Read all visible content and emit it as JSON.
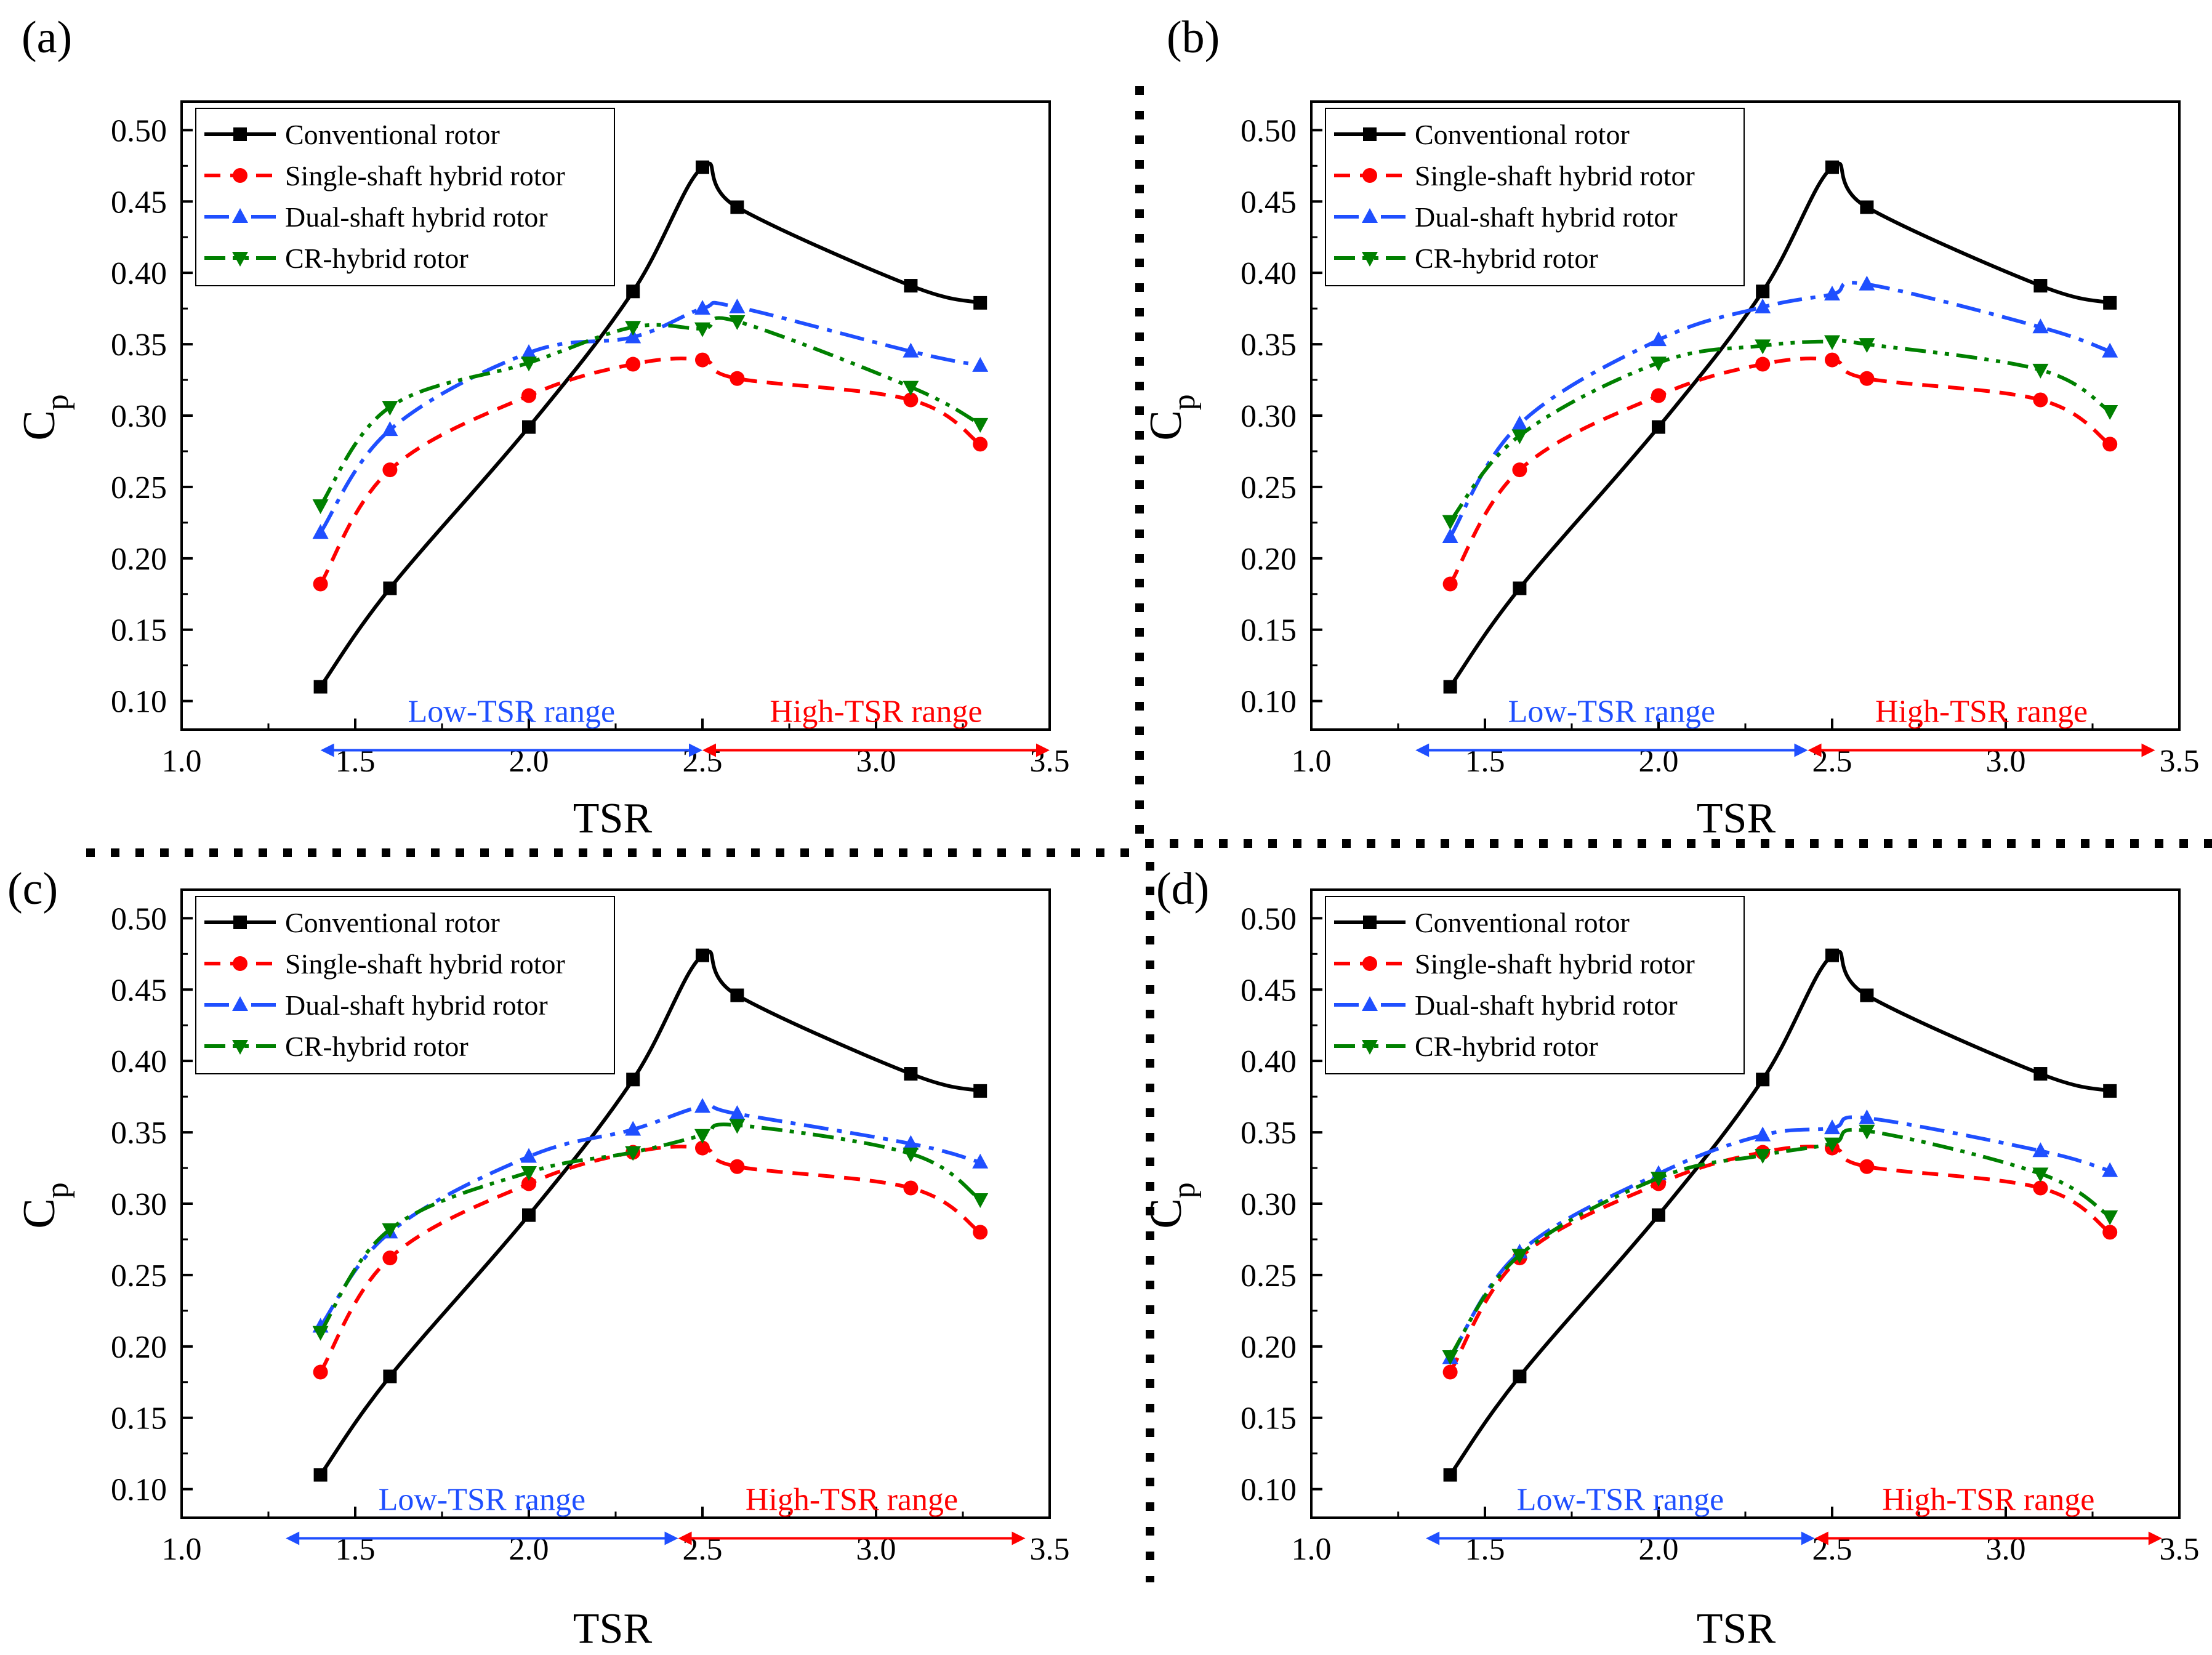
{
  "chart_data": [
    {
      "type": "line",
      "panel_label": "(a)",
      "xlabel": "TSR",
      "ylabel_main": "C",
      "ylabel_sub": "p",
      "xlim": [
        1.0,
        3.5
      ],
      "ylim": [
        0.08,
        0.52
      ],
      "xticks": [
        "1.0",
        "1.5",
        "2.0",
        "2.5",
        "3.0",
        "3.5"
      ],
      "yticks": [
        "0.10",
        "0.15",
        "0.20",
        "0.25",
        "0.30",
        "0.35",
        "0.40",
        "0.45",
        "0.50"
      ],
      "legend_position": "top-left",
      "series": [
        {
          "name": "Conventional rotor",
          "color": "#000000",
          "marker": "square",
          "dash": "solid",
          "x": [
            1.4,
            1.6,
            2.0,
            2.3,
            2.5,
            2.6,
            3.1,
            3.3
          ],
          "values": [
            0.11,
            0.179,
            0.292,
            0.387,
            0.474,
            0.446,
            0.391,
            0.379
          ]
        },
        {
          "name": "Single-shaft hybrid rotor",
          "color": "#ff0000",
          "marker": "circle",
          "dash": "dash",
          "x": [
            1.4,
            1.6,
            2.0,
            2.3,
            2.5,
            2.6,
            3.1,
            3.3
          ],
          "values": [
            0.182,
            0.262,
            0.314,
            0.336,
            0.339,
            0.326,
            0.311,
            0.28
          ]
        },
        {
          "name": "Dual-shaft hybrid rotor",
          "color": "#1f4fff",
          "marker": "triangle-up",
          "dash": "dashdot",
          "x": [
            1.4,
            1.6,
            2.0,
            2.3,
            2.5,
            2.6,
            3.1,
            3.3
          ],
          "values": [
            0.218,
            0.29,
            0.344,
            0.355,
            0.375,
            0.376,
            0.345,
            0.335
          ]
        },
        {
          "name": "CR-hybrid rotor",
          "color": "#008000",
          "marker": "triangle-down",
          "dash": "dashdotdot",
          "x": [
            1.4,
            1.6,
            2.0,
            2.3,
            2.5,
            2.6,
            3.1,
            3.3
          ],
          "values": [
            0.237,
            0.306,
            0.337,
            0.362,
            0.361,
            0.366,
            0.32,
            0.294
          ]
        }
      ],
      "annotations": [
        {
          "text": "Low-TSR range",
          "color": "#1f4fff",
          "x_start": 1.4,
          "x_end": 2.5
        },
        {
          "text": "High-TSR range",
          "color": "#ff0000",
          "x_start": 2.5,
          "x_end": 3.5
        }
      ]
    },
    {
      "type": "line",
      "panel_label": "(b)",
      "xlabel": "TSR",
      "ylabel_main": "C",
      "ylabel_sub": "p",
      "xlim": [
        1.0,
        3.5
      ],
      "ylim": [
        0.08,
        0.52
      ],
      "xticks": [
        "1.0",
        "1.5",
        "2.0",
        "2.5",
        "3.0",
        "3.5"
      ],
      "yticks": [
        "0.10",
        "0.15",
        "0.20",
        "0.25",
        "0.30",
        "0.35",
        "0.40",
        "0.45",
        "0.50"
      ],
      "legend_position": "top-left",
      "series": [
        {
          "name": "Conventional rotor",
          "color": "#000000",
          "marker": "square",
          "dash": "solid",
          "x": [
            1.4,
            1.6,
            2.0,
            2.3,
            2.5,
            2.6,
            3.1,
            3.3
          ],
          "values": [
            0.11,
            0.179,
            0.292,
            0.387,
            0.474,
            0.446,
            0.391,
            0.379
          ]
        },
        {
          "name": "Single-shaft hybrid rotor",
          "color": "#ff0000",
          "marker": "circle",
          "dash": "dash",
          "x": [
            1.4,
            1.6,
            2.0,
            2.3,
            2.5,
            2.6,
            3.1,
            3.3
          ],
          "values": [
            0.182,
            0.262,
            0.314,
            0.336,
            0.339,
            0.326,
            0.311,
            0.28
          ]
        },
        {
          "name": "Dual-shaft hybrid rotor",
          "color": "#1f4fff",
          "marker": "triangle-up",
          "dash": "dashdot",
          "x": [
            1.4,
            1.6,
            2.0,
            2.3,
            2.5,
            2.6,
            3.1,
            3.3
          ],
          "values": [
            0.215,
            0.294,
            0.353,
            0.376,
            0.385,
            0.392,
            0.362,
            0.345
          ]
        },
        {
          "name": "CR-hybrid rotor",
          "color": "#008000",
          "marker": "triangle-down",
          "dash": "dashdotdot",
          "x": [
            1.4,
            1.6,
            2.0,
            2.3,
            2.5,
            2.6,
            3.1,
            3.3
          ],
          "values": [
            0.226,
            0.286,
            0.337,
            0.349,
            0.352,
            0.35,
            0.332,
            0.303
          ]
        }
      ],
      "annotations": [
        {
          "text": "Low-TSR range",
          "color": "#1f4fff",
          "x_start": 1.3,
          "x_end": 2.43
        },
        {
          "text": "High-TSR range",
          "color": "#ff0000",
          "x_start": 2.43,
          "x_end": 3.43
        }
      ]
    },
    {
      "type": "line",
      "panel_label": "(c)",
      "xlabel": "TSR",
      "ylabel_main": "C",
      "ylabel_sub": "p",
      "xlim": [
        1.0,
        3.5
      ],
      "ylim": [
        0.08,
        0.52
      ],
      "xticks": [
        "1.0",
        "1.5",
        "2.0",
        "2.5",
        "3.0",
        "3.5"
      ],
      "yticks": [
        "0.10",
        "0.15",
        "0.20",
        "0.25",
        "0.30",
        "0.35",
        "0.40",
        "0.45",
        "0.50"
      ],
      "legend_position": "top-left",
      "series": [
        {
          "name": "Conventional rotor",
          "color": "#000000",
          "marker": "square",
          "dash": "solid",
          "x": [
            1.4,
            1.6,
            2.0,
            2.3,
            2.5,
            2.6,
            3.1,
            3.3
          ],
          "values": [
            0.11,
            0.179,
            0.292,
            0.387,
            0.474,
            0.446,
            0.391,
            0.379
          ]
        },
        {
          "name": "Single-shaft hybrid rotor",
          "color": "#ff0000",
          "marker": "circle",
          "dash": "dash",
          "x": [
            1.4,
            1.6,
            2.0,
            2.3,
            2.5,
            2.6,
            3.1,
            3.3
          ],
          "values": [
            0.182,
            0.262,
            0.314,
            0.336,
            0.339,
            0.326,
            0.311,
            0.28
          ]
        },
        {
          "name": "Dual-shaft hybrid rotor",
          "color": "#1f4fff",
          "marker": "triangle-up",
          "dash": "dashdot",
          "x": [
            1.4,
            1.6,
            2.0,
            2.3,
            2.5,
            2.6,
            3.1,
            3.3
          ],
          "values": [
            0.214,
            0.28,
            0.333,
            0.352,
            0.368,
            0.363,
            0.342,
            0.329
          ]
        },
        {
          "name": "CR-hybrid rotor",
          "color": "#008000",
          "marker": "triangle-down",
          "dash": "dashdotdot",
          "x": [
            1.4,
            1.6,
            2.0,
            2.3,
            2.5,
            2.6,
            3.1,
            3.3
          ],
          "values": [
            0.21,
            0.282,
            0.322,
            0.336,
            0.348,
            0.355,
            0.335,
            0.303
          ]
        }
      ],
      "annotations": [
        {
          "text": "Low-TSR range",
          "color": "#1f4fff",
          "x_start": 1.3,
          "x_end": 2.43
        },
        {
          "text": "High-TSR range",
          "color": "#ff0000",
          "x_start": 2.43,
          "x_end": 3.43
        }
      ]
    },
    {
      "type": "line",
      "panel_label": "(d)",
      "xlabel": "TSR",
      "ylabel_main": "C",
      "ylabel_sub": "p",
      "xlim": [
        1.0,
        3.5
      ],
      "ylim": [
        0.08,
        0.52
      ],
      "xticks": [
        "1.0",
        "1.5",
        "2.0",
        "2.5",
        "3.0",
        "3.5"
      ],
      "yticks": [
        "0.10",
        "0.15",
        "0.20",
        "0.25",
        "0.30",
        "0.35",
        "0.40",
        "0.45",
        "0.50"
      ],
      "legend_position": "top-left",
      "series": [
        {
          "name": "Conventional rotor",
          "color": "#000000",
          "marker": "square",
          "dash": "solid",
          "x": [
            1.4,
            1.6,
            2.0,
            2.3,
            2.5,
            2.6,
            3.1,
            3.3
          ],
          "values": [
            0.11,
            0.179,
            0.292,
            0.387,
            0.474,
            0.446,
            0.391,
            0.379
          ]
        },
        {
          "name": "Single-shaft hybrid rotor",
          "color": "#ff0000",
          "marker": "circle",
          "dash": "dash",
          "x": [
            1.4,
            1.6,
            2.0,
            2.3,
            2.5,
            2.6,
            3.1,
            3.3
          ],
          "values": [
            0.182,
            0.262,
            0.314,
            0.336,
            0.339,
            0.326,
            0.311,
            0.28
          ]
        },
        {
          "name": "Dual-shaft hybrid rotor",
          "color": "#1f4fff",
          "marker": "triangle-up",
          "dash": "dashdot",
          "x": [
            1.4,
            1.6,
            2.0,
            2.3,
            2.5,
            2.6,
            3.1,
            3.3
          ],
          "values": [
            0.192,
            0.266,
            0.321,
            0.348,
            0.353,
            0.36,
            0.337,
            0.323
          ]
        },
        {
          "name": "CR-hybrid rotor",
          "color": "#008000",
          "marker": "triangle-down",
          "dash": "dashdotdot",
          "x": [
            1.4,
            1.6,
            2.0,
            2.3,
            2.5,
            2.6,
            3.1,
            3.3
          ],
          "values": [
            0.193,
            0.264,
            0.318,
            0.334,
            0.342,
            0.351,
            0.321,
            0.291
          ]
        }
      ],
      "annotations": [
        {
          "text": "Low-TSR range",
          "color": "#1f4fff",
          "x_start": 1.33,
          "x_end": 2.45
        },
        {
          "text": "High-TSR range",
          "color": "#ff0000",
          "x_start": 2.45,
          "x_end": 3.45
        }
      ]
    }
  ]
}
